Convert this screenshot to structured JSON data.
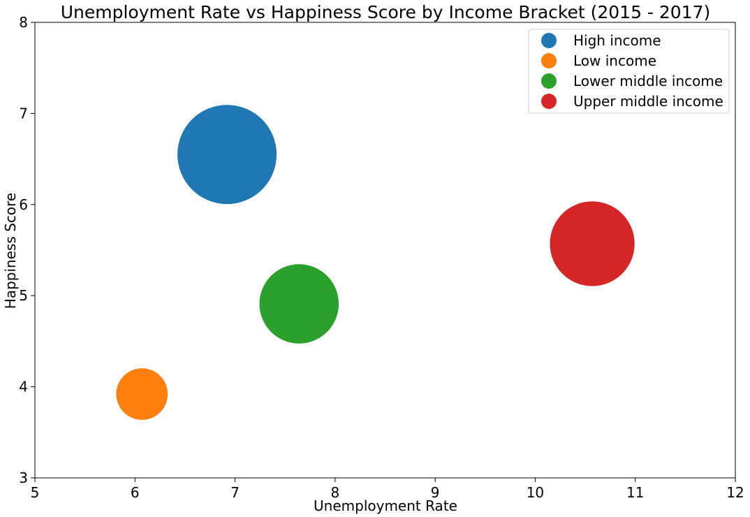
{
  "chart_data": {
    "type": "scatter",
    "title": "Unemployment Rate vs Happiness Score by Income Bracket (2015 - 2017)",
    "xlabel": "Unemployment Rate",
    "ylabel": "Happiness Score",
    "xlim": [
      5,
      12
    ],
    "ylim": [
      3,
      8
    ],
    "xticks": [
      "5",
      "6",
      "7",
      "8",
      "9",
      "10",
      "11",
      "12"
    ],
    "yticks": [
      "3",
      "4",
      "5",
      "6",
      "7",
      "8"
    ],
    "grid": false,
    "legend_position": "top-right",
    "series": [
      {
        "name": "High income",
        "x": 6.92,
        "y": 6.55,
        "size": 1.0,
        "color": "#1f77b4"
      },
      {
        "name": "Low income",
        "x": 6.07,
        "y": 3.92,
        "size": 0.27,
        "color": "#ff7f0e"
      },
      {
        "name": "Lower middle income",
        "x": 7.64,
        "y": 4.91,
        "size": 0.64,
        "color": "#2ca02c"
      },
      {
        "name": "Upper middle income",
        "x": 10.57,
        "y": 5.57,
        "size": 0.73,
        "color": "#d62728"
      }
    ]
  }
}
